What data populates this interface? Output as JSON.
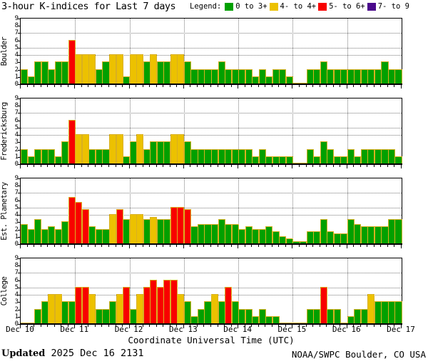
{
  "title": "3-hour K-indices for Last 7 days",
  "legend": {
    "label": "Legend:",
    "items": [
      {
        "label": "0 to 3+",
        "color": "#00a000"
      },
      {
        "label": "4- to 4+",
        "color": "#ecc100"
      },
      {
        "label": "5- to 6+",
        "color": "#f80000"
      },
      {
        "label": "7- to 9",
        "color": "#4b0a8c"
      }
    ]
  },
  "xlabel": "Coordinate Universal Time (UTC)",
  "footer": {
    "updated_label": "Updated",
    "updated_value": "2025 Dec 16 2131",
    "source": "NOAA/SWPC Boulder, CO USA"
  },
  "chart_data": {
    "type": "bar",
    "ylim": [
      0,
      9
    ],
    "y_ticks": [
      0,
      1,
      2,
      3,
      4,
      5,
      6,
      7,
      8,
      9
    ],
    "grid_y": [
      4,
      5,
      7
    ],
    "bars_per_day": 8,
    "x_tick_labels": [
      "Dec 10",
      "Dec 11",
      "Dec 12",
      "Dec 13",
      "Dec 14",
      "Dec 15",
      "Dec 16",
      "Dec 17"
    ],
    "color_thresholds": {
      "green_max": 3.33,
      "yellow_max": 4.33,
      "red_max": 6.33
    },
    "series": [
      {
        "name": "Boulder",
        "values": [
          2,
          1,
          3,
          3,
          2,
          3,
          3,
          6,
          4,
          4,
          4,
          2,
          3,
          4,
          4,
          1,
          4,
          4,
          3,
          4,
          3,
          3,
          4,
          4,
          3,
          2,
          2,
          2,
          2,
          3,
          2,
          2,
          2,
          2,
          1,
          2,
          1,
          2,
          2,
          1,
          0,
          0,
          2,
          2,
          3,
          2,
          2,
          2,
          2,
          2,
          2,
          2,
          2,
          3,
          2,
          2
        ]
      },
      {
        "name": "Fredericksburg",
        "values": [
          2,
          1,
          2,
          2,
          2,
          1,
          3,
          6,
          4,
          4,
          2,
          2,
          2,
          4,
          4,
          1,
          3,
          4,
          2,
          3,
          3,
          3,
          4,
          4,
          3,
          2,
          2,
          2,
          2,
          2,
          2,
          2,
          2,
          2,
          1,
          2,
          1,
          1,
          1,
          1,
          0,
          0,
          2,
          1,
          3,
          2,
          1,
          1,
          2,
          1,
          2,
          2,
          2,
          2,
          2,
          1
        ]
      },
      {
        "name": "Est. Planetary",
        "values": [
          2.67,
          2,
          3.33,
          2,
          2.33,
          2,
          3,
          6.33,
          5.67,
          4.67,
          2.33,
          2,
          2,
          4,
          4.67,
          3.33,
          4,
          4,
          3.33,
          3.67,
          3.33,
          3.33,
          5,
          5,
          4.67,
          2.33,
          2.67,
          2.67,
          2.67,
          3.33,
          2.67,
          2.67,
          2,
          2.33,
          2,
          2,
          2.33,
          1.67,
          1,
          0.67,
          0.33,
          0.33,
          1.67,
          1.67,
          3.33,
          1.67,
          1.33,
          1.33,
          3.33,
          2.67,
          2.33,
          2.33,
          2.33,
          2.33,
          3.33,
          3.33
        ]
      },
      {
        "name": "College",
        "values": [
          0,
          0,
          2,
          3,
          4,
          4,
          3,
          3,
          5,
          5,
          4,
          2,
          2,
          3,
          4,
          5,
          2,
          4,
          5,
          6,
          5,
          6,
          6,
          4,
          3,
          1,
          2,
          3,
          4,
          3,
          5,
          3,
          2,
          2,
          1,
          2,
          1,
          1,
          0,
          0,
          0,
          0,
          2,
          2,
          5,
          2,
          2,
          0,
          1,
          2,
          2,
          4,
          3,
          3,
          3,
          3
        ]
      }
    ]
  }
}
